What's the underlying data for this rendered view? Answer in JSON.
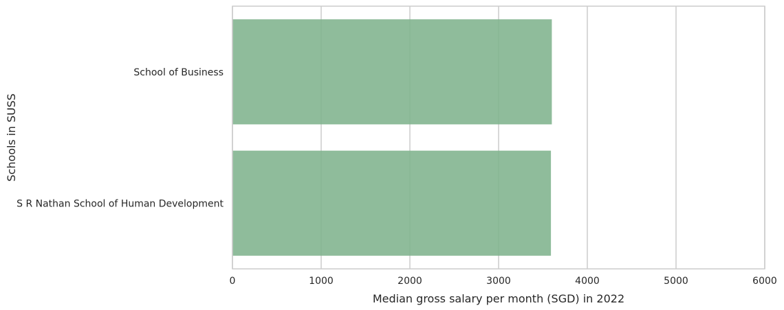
{
  "chart_data": {
    "type": "bar",
    "orientation": "horizontal",
    "categories": [
      "School of Business",
      "S R Nathan School of Human Development"
    ],
    "values": [
      3600,
      3590
    ],
    "xlabel": "Median gross salary per month (SGD) in 2022",
    "ylabel": "Schools in SUSS",
    "xlim": [
      0,
      6000
    ],
    "xticks": [
      "0",
      "1000",
      "2000",
      "3000",
      "4000",
      "5000",
      "6000"
    ],
    "grid": "vertical",
    "bar_color": "#7fb38d",
    "grid_color": "#cccccc",
    "frame_color": "#cccccc"
  }
}
